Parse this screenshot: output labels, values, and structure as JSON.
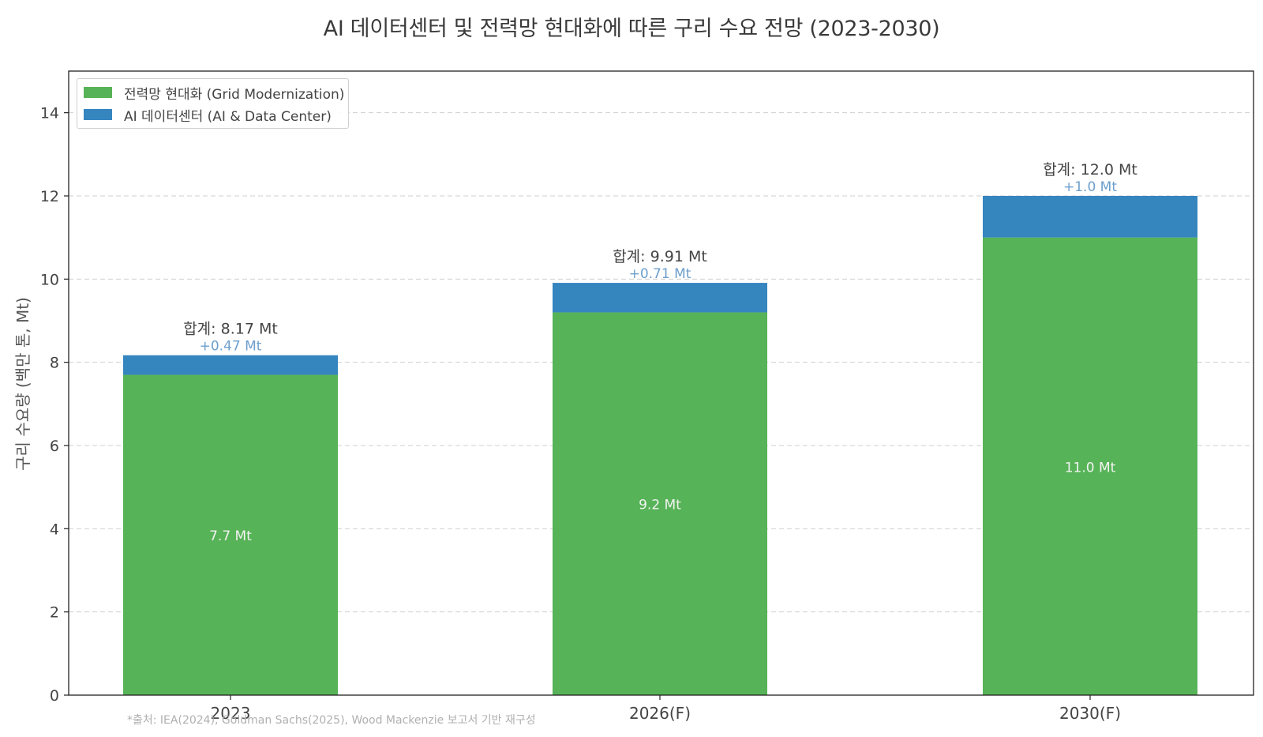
{
  "chart_data": {
    "type": "bar",
    "stacked": true,
    "title": "AI 데이터센터 및 전력망 현대화에 따른 구리 수요 전망 (2023-2030)",
    "xlabel": "",
    "ylabel": "구리 수요량 (백만 톤, Mt)",
    "ylim": [
      0,
      15
    ],
    "yticks": [
      0,
      2,
      4,
      6,
      8,
      10,
      12,
      14
    ],
    "grid": "horizontal-dashed",
    "legend_position": "top-left",
    "categories": [
      "2023",
      "2026(F)",
      "2030(F)"
    ],
    "series": [
      {
        "name": "전력망 현대화 (Grid Modernization)",
        "color": "#57b357",
        "values": [
          7.7,
          9.2,
          11.0
        ],
        "labels": [
          "7.7 Mt",
          "9.2 Mt",
          "11.0 Mt"
        ]
      },
      {
        "name": "AI 데이터센터 (AI & Data Center)",
        "color": "#3585bf",
        "values": [
          0.47,
          0.71,
          1.0
        ],
        "labels": [
          "+0.47 Mt",
          "+0.71 Mt",
          "+1.0 Mt"
        ]
      }
    ],
    "totals": [
      8.17,
      9.91,
      12.0
    ],
    "total_labels": [
      "합계: 8.17 Mt",
      "합계: 9.91 Mt",
      "합계: 12.0 Mt"
    ],
    "footnote": "*출처: IEA(2024), Goldman Sachs(2025), Wood Mackenzie 보고서 기반 재구성"
  }
}
